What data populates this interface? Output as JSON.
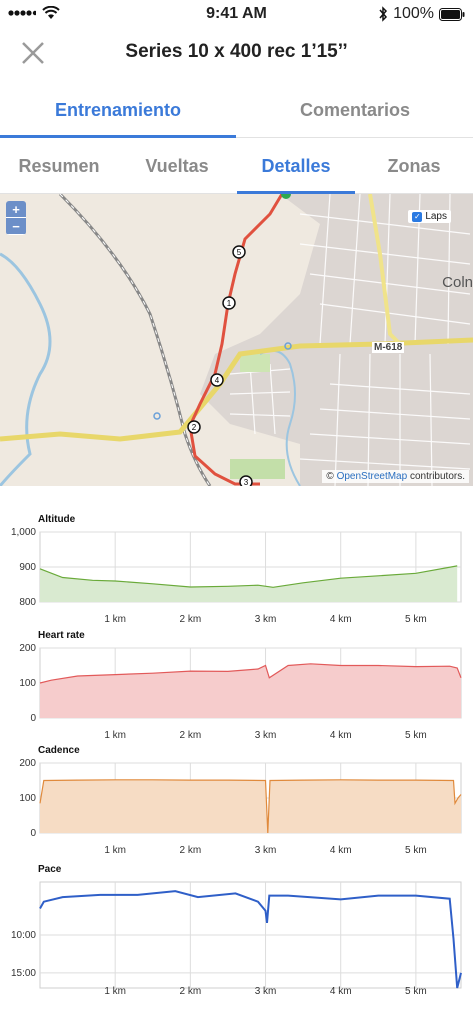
{
  "status_bar": {
    "time": "9:41 AM",
    "battery": "100%"
  },
  "header": {
    "title": "Series 10 x 400 rec 1’15’’"
  },
  "top_tabs": [
    {
      "label": "Entrenamiento",
      "active": true
    },
    {
      "label": "Comentarios",
      "active": false
    }
  ],
  "sub_tabs": [
    {
      "label": "Resumen",
      "active": false
    },
    {
      "label": "Vueltas",
      "active": false
    },
    {
      "label": "Detalles",
      "active": true
    },
    {
      "label": "Zonas",
      "active": false
    }
  ],
  "map": {
    "zoom_in": "+",
    "zoom_out": "−",
    "laps_label": "Laps",
    "laps_checked": true,
    "place_label": "Coln",
    "road_label": "M-618",
    "attribution_prefix": "©",
    "attribution_link": "OpenStreetMap",
    "attribution_suffix": "contributors.",
    "lap_markers": [
      "5",
      "1",
      "4",
      "2",
      "3"
    ]
  },
  "charts": [
    {
      "name": "altitude",
      "title": "Altitude",
      "color": "#6aaa3a",
      "fill": "#d9ead0",
      "y_ticks": [
        "1,000",
        "900",
        "800"
      ],
      "x_ticks": [
        "1 km",
        "2 km",
        "3 km",
        "4 km",
        "5 km"
      ]
    },
    {
      "name": "heart-rate",
      "title": "Heart rate",
      "color": "#e25a5a",
      "fill": "#f6cccc",
      "y_ticks": [
        "200",
        "100",
        "0"
      ],
      "x_ticks": [
        "1 km",
        "2 km",
        "3 km",
        "4 km",
        "5 km"
      ]
    },
    {
      "name": "cadence",
      "title": "Cadence",
      "color": "#e08a3c",
      "fill": "#f6dcc4",
      "y_ticks": [
        "200",
        "100",
        "0"
      ],
      "x_ticks": [
        "1 km",
        "2 km",
        "3 km",
        "4 km",
        "5 km"
      ]
    },
    {
      "name": "pace",
      "title": "Pace",
      "color": "#2f5fc8",
      "fill": "none",
      "y_ticks": [
        "10:00",
        "15:00"
      ],
      "x_ticks": [
        "1 km",
        "2 km",
        "3 km",
        "4 km",
        "5 km"
      ]
    }
  ],
  "chart_data": [
    {
      "type": "area",
      "title": "Altitude",
      "x": [
        0,
        0.3,
        0.7,
        1.0,
        1.5,
        2.0,
        2.5,
        2.9,
        3.1,
        3.5,
        4.0,
        4.5,
        5.0,
        5.55
      ],
      "y": [
        895,
        870,
        862,
        860,
        852,
        843,
        845,
        848,
        842,
        855,
        868,
        875,
        882,
        903
      ],
      "ylim": [
        800,
        1000
      ],
      "xlim": [
        0,
        5.6
      ],
      "xlabel": "",
      "ylabel": "",
      "grid": true
    },
    {
      "type": "area",
      "title": "Heart rate",
      "x": [
        0,
        0.15,
        0.5,
        1.0,
        1.5,
        2.0,
        2.5,
        2.9,
        3.0,
        3.05,
        3.3,
        3.6,
        4.0,
        4.5,
        5.0,
        5.45,
        5.55,
        5.6
      ],
      "y": [
        100,
        108,
        120,
        124,
        128,
        134,
        133,
        140,
        150,
        115,
        150,
        155,
        150,
        150,
        147,
        148,
        143,
        115
      ],
      "ylim": [
        0,
        200
      ],
      "xlim": [
        0,
        5.6
      ],
      "xlabel": "",
      "ylabel": "",
      "grid": true
    },
    {
      "type": "area",
      "title": "Cadence",
      "x": [
        0,
        0.05,
        0.5,
        1.0,
        1.5,
        2.0,
        2.5,
        3.0,
        3.03,
        3.06,
        3.5,
        4.0,
        4.5,
        5.0,
        5.5,
        5.52,
        5.56,
        5.6
      ],
      "y": [
        85,
        150,
        151,
        152,
        152,
        151,
        151,
        150,
        0,
        150,
        151,
        152,
        151,
        151,
        150,
        85,
        100,
        110
      ],
      "ylim": [
        0,
        200
      ],
      "xlim": [
        0,
        5.6
      ],
      "xlabel": "",
      "ylabel": "",
      "grid": true
    },
    {
      "type": "line",
      "title": "Pace",
      "x": [
        0,
        0.05,
        0.3,
        0.8,
        1.3,
        1.8,
        2.1,
        2.6,
        2.9,
        3.0,
        3.02,
        3.05,
        3.3,
        4.0,
        4.5,
        5.0,
        5.45,
        5.5,
        5.55,
        5.6
      ],
      "y": [
        6.5,
        5.6,
        5.0,
        4.7,
        4.7,
        4.2,
        5.0,
        4.5,
        5.6,
        6.8,
        8.4,
        4.8,
        4.8,
        5.3,
        4.8,
        4.8,
        5.2,
        10.5,
        17.0,
        15.0
      ],
      "yunit": "min/km",
      "ylim": [
        3,
        17
      ],
      "inverted_y": true,
      "xlim": [
        0,
        5.6
      ],
      "xlabel": "",
      "ylabel": "",
      "grid": true
    }
  ]
}
